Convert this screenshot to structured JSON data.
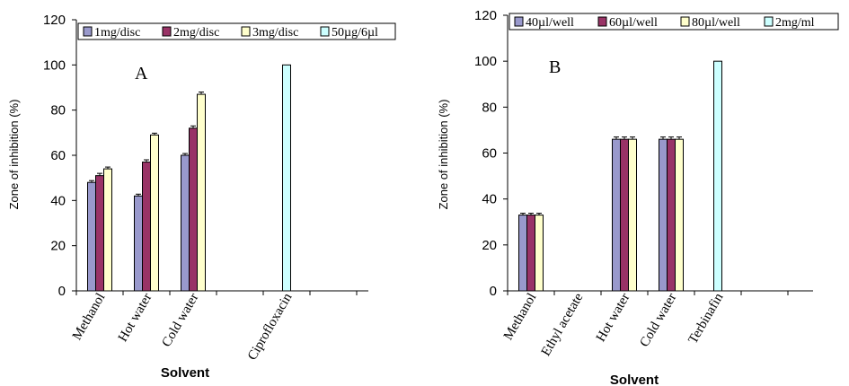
{
  "chart_data": [
    {
      "type": "bar",
      "panel_label": "A",
      "ylabel": "Zone of inhibition (%)",
      "xlabel": "Solvent",
      "ylim": [
        0,
        120
      ],
      "yticks": [
        "0",
        "20",
        "40",
        "60",
        "80",
        "100",
        "120"
      ],
      "categories": [
        "Methanol",
        "Hot water",
        "Cold water",
        "",
        "Ciprofloxacin"
      ],
      "legend_position": "top",
      "series": [
        {
          "name": "1mg/disc",
          "color": "#9999cc",
          "values": [
            48,
            42,
            60,
            null,
            null
          ],
          "errors": [
            0.8,
            0.8,
            0.8,
            null,
            null
          ]
        },
        {
          "name": "2mg/disc",
          "color": "#993366",
          "values": [
            51,
            57,
            72,
            null,
            null
          ],
          "errors": [
            1,
            1,
            1,
            null,
            null
          ]
        },
        {
          "name": "3mg/disc",
          "color": "#ffffcc",
          "values": [
            54,
            69,
            87,
            null,
            null
          ],
          "errors": [
            0.8,
            0.8,
            1,
            null,
            null
          ]
        },
        {
          "name": "50µg/6µl",
          "color": "#ccffff",
          "values": [
            null,
            null,
            null,
            null,
            100
          ],
          "errors": [
            null,
            null,
            null,
            null,
            null
          ]
        }
      ]
    },
    {
      "type": "bar",
      "panel_label": "B",
      "ylabel": "Zone of inhibition (%)",
      "xlabel": "Solvent",
      "ylim": [
        0,
        120
      ],
      "yticks": [
        "0",
        "20",
        "40",
        "60",
        "80",
        "100",
        "120"
      ],
      "categories": [
        "Methanol",
        "Ethyl acetate",
        "Hot water",
        "Cold water",
        "Terbinafin"
      ],
      "legend_position": "top",
      "series": [
        {
          "name": "40µl/well",
          "color": "#9999cc",
          "values": [
            33,
            null,
            66,
            66,
            null
          ],
          "errors": [
            0.8,
            null,
            1,
            1,
            null
          ]
        },
        {
          "name": "60µl/well",
          "color": "#993366",
          "values": [
            33,
            null,
            66,
            66,
            null
          ],
          "errors": [
            0.8,
            null,
            1,
            1,
            null
          ]
        },
        {
          "name": "80µl/well",
          "color": "#ffffcc",
          "values": [
            33,
            null,
            66,
            66,
            null
          ],
          "errors": [
            0.8,
            null,
            1,
            1,
            null
          ]
        },
        {
          "name": "2mg/ml",
          "color": "#ccffff",
          "values": [
            null,
            null,
            null,
            null,
            100
          ],
          "errors": [
            null,
            null,
            null,
            null,
            null
          ]
        }
      ]
    }
  ]
}
